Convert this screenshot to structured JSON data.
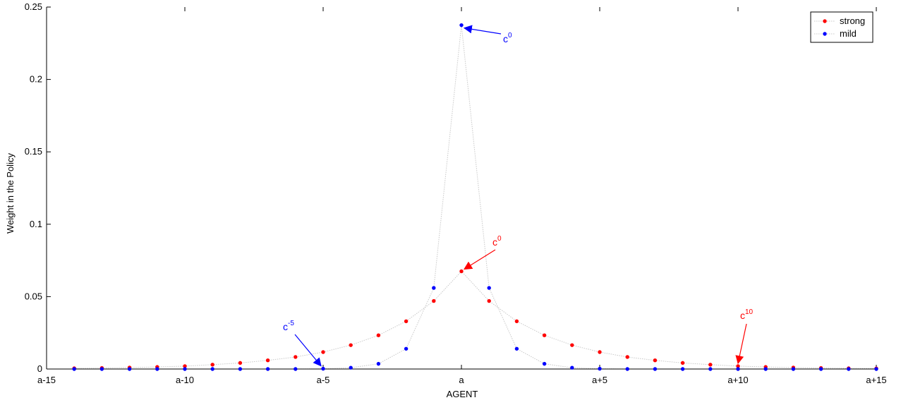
{
  "chart_data": {
    "type": "scatter",
    "xlabel": "AGENT",
    "ylabel": "Weight in the Policy",
    "xlim": [
      -15,
      15
    ],
    "ylim": [
      0,
      0.25
    ],
    "x_ticks": [
      {
        "value": -15,
        "label": "a-15"
      },
      {
        "value": -10,
        "label": "a-10"
      },
      {
        "value": -5,
        "label": "a-5"
      },
      {
        "value": 0,
        "label": "a"
      },
      {
        "value": 5,
        "label": "a+5"
      },
      {
        "value": 10,
        "label": "a+10"
      },
      {
        "value": 15,
        "label": "a+15"
      }
    ],
    "y_ticks": [
      {
        "value": 0,
        "label": "0"
      },
      {
        "value": 0.05,
        "label": "0.05"
      },
      {
        "value": 0.1,
        "label": "0.1"
      },
      {
        "value": 0.15,
        "label": "0.15"
      },
      {
        "value": 0.2,
        "label": "0.2"
      },
      {
        "value": 0.25,
        "label": "0.25"
      }
    ],
    "legend_position": "top-right",
    "series": [
      {
        "name": "strong",
        "color": "#ff0000",
        "x": [
          -14,
          -13,
          -12,
          -11,
          -10,
          -9,
          -8,
          -7,
          -6,
          -5,
          -4,
          -3,
          -2,
          -1,
          0,
          1,
          2,
          3,
          4,
          5,
          6,
          7,
          8,
          9,
          10,
          11,
          12,
          13,
          14,
          15
        ],
        "y": [
          0.0005,
          0.0007,
          0.001,
          0.0014,
          0.002,
          0.003,
          0.0042,
          0.006,
          0.0083,
          0.0117,
          0.0165,
          0.0233,
          0.033,
          0.047,
          0.0675,
          0.047,
          0.033,
          0.0233,
          0.0165,
          0.0117,
          0.0083,
          0.006,
          0.0042,
          0.003,
          0.002,
          0.0014,
          0.001,
          0.0007,
          0.0005,
          0.0004
        ]
      },
      {
        "name": "mild",
        "color": "#0000ff",
        "x": [
          -14,
          -13,
          -12,
          -11,
          -10,
          -9,
          -8,
          -7,
          -6,
          -5,
          -4,
          -3,
          -2,
          -1,
          0,
          1,
          2,
          3,
          4,
          5,
          6,
          7,
          8,
          9,
          10,
          11,
          12,
          13,
          14,
          15
        ],
        "y": [
          0,
          0,
          0,
          0,
          0,
          0,
          0,
          0,
          0,
          0.0002,
          0.0009,
          0.0036,
          0.014,
          0.056,
          0.2375,
          0.056,
          0.014,
          0.0036,
          0.0009,
          0.0002,
          0,
          0,
          0,
          0,
          0,
          0,
          0,
          0,
          0,
          0
        ]
      }
    ],
    "annotations": [
      {
        "base": "c",
        "sup": "0",
        "color": "#0000ff",
        "target_x": 0,
        "target_y": 0.2375
      },
      {
        "base": "c",
        "sup": "0",
        "color": "#ff0000",
        "target_x": 0,
        "target_y": 0.0675
      },
      {
        "base": "c",
        "sup": "-5",
        "color": "#0000ff",
        "target_x": -5,
        "target_y": 0.0002
      },
      {
        "base": "c",
        "sup": "10",
        "color": "#ff0000",
        "target_x": 10,
        "target_y": 0.002
      }
    ]
  }
}
